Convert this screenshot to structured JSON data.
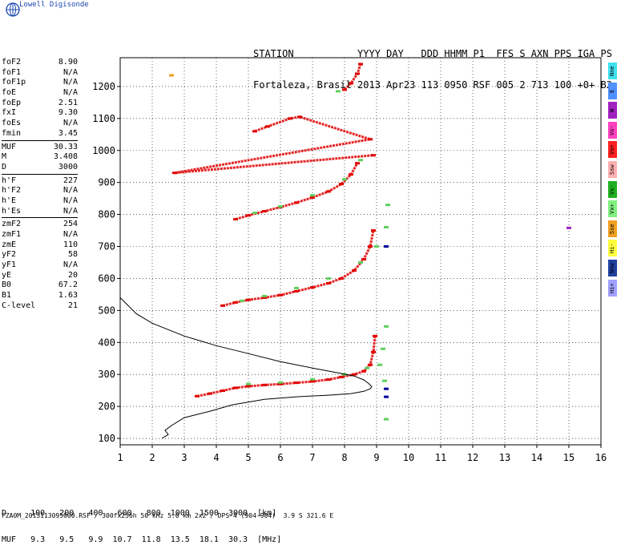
{
  "brand": "Lowell Digisonde",
  "header": {
    "line1": "STATION           YYYY DAY   DDD HHMM P1  FFS S AXN PPS IGA PS",
    "line2": "Fortaleza, Brasil 2013 Apr23 113 0950 RSF 005 2 713 100 +0+ B2"
  },
  "params": [
    {
      "k": "foF2",
      "v": "8.90"
    },
    {
      "k": "foF1",
      "v": "N/A"
    },
    {
      "k": "foF1p",
      "v": "N/A"
    },
    {
      "k": "foE",
      "v": "N/A"
    },
    {
      "k": "foEp",
      "v": "2.51"
    },
    {
      "k": "fxI",
      "v": "9.30"
    },
    {
      "k": "foEs",
      "v": "N/A"
    },
    {
      "k": "fmin",
      "v": "3.45"
    },
    {
      "sep": true
    },
    {
      "k": "MUF",
      "v": "30.33"
    },
    {
      "k": "M",
      "v": "3.408"
    },
    {
      "k": "D",
      "v": "3000"
    },
    {
      "sep": true
    },
    {
      "k": "h'F",
      "v": "227"
    },
    {
      "k": "h'F2",
      "v": "N/A"
    },
    {
      "k": "h'E",
      "v": "N/A"
    },
    {
      "k": "h'Es",
      "v": "N/A"
    },
    {
      "sep": true
    },
    {
      "k": "zmF2",
      "v": "254"
    },
    {
      "k": "zmF1",
      "v": "N/A"
    },
    {
      "k": "zmE",
      "v": "110"
    },
    {
      "k": "yF2",
      "v": "58"
    },
    {
      "k": "yF1",
      "v": "N/A"
    },
    {
      "k": "yE",
      "v": "20"
    },
    {
      "k": "B0",
      "v": "67.2"
    },
    {
      "k": "B1",
      "v": "1.63"
    },
    {
      "k": "C-level",
      "v": "21"
    }
  ],
  "legend": [
    {
      "label": "Nne",
      "color": "#40e0f0"
    },
    {
      "label": "E",
      "color": "#5090ff"
    },
    {
      "label": "W",
      "color": "#a020c0"
    },
    {
      "label": "Vo-",
      "color": "#ff40c0"
    },
    {
      "label": "Vo+",
      "color": "#ff2020"
    },
    {
      "label": "Ssw",
      "color": "#ffb0b0"
    },
    {
      "label": "Vx-",
      "color": "#20b020"
    },
    {
      "label": "Vx+",
      "color": "#80f080"
    },
    {
      "label": "Sse",
      "color": "#f0a020"
    },
    {
      "label": "Hi-",
      "color": "#ffff40"
    },
    {
      "label": "Nnw",
      "color": "#2040a0"
    },
    {
      "label": "Hi+",
      "color": "#a0a0ff"
    }
  ],
  "muf_table": {
    "row1": "D     100   200   400   600   800  1000  1500  3000  [km]",
    "row2": "MUF   9.3   9.5   9.9  10.7  11.8  13.5  18.1  30.3  [MHz]"
  },
  "footer": "FZA0M_2013113095000.RSF / 300fx256h 50 kHz 5.0 km 2x2 / DPS-4 (904-904)  3.9 S 321.6 E",
  "chart_data": {
    "type": "scatter",
    "title": "",
    "xlabel": "",
    "ylabel": "",
    "xlim": [
      1,
      16
    ],
    "ylim": [
      80,
      1290
    ],
    "xticks": [
      "1",
      "2",
      "3",
      "4",
      "5",
      "6",
      "7",
      "8",
      "9",
      "10",
      "11",
      "12",
      "13",
      "14",
      "15",
      "16"
    ],
    "yticks": [
      "100",
      "200",
      "300",
      "400",
      "500",
      "600",
      "700",
      "800",
      "900",
      "1000",
      "1100",
      "1200"
    ],
    "grid": true,
    "series": [
      {
        "color": "#e00000",
        "points": [
          [
            3.4,
            232
          ],
          [
            3.8,
            240
          ],
          [
            4.2,
            249
          ],
          [
            4.6,
            258
          ],
          [
            5.0,
            263
          ],
          [
            5.5,
            267
          ],
          [
            6.0,
            270
          ],
          [
            6.5,
            274
          ],
          [
            7.0,
            278
          ],
          [
            7.5,
            284
          ],
          [
            7.9,
            292
          ],
          [
            8.3,
            300
          ],
          [
            8.6,
            310
          ],
          [
            8.8,
            330
          ],
          [
            8.9,
            370
          ],
          [
            8.95,
            420
          ]
        ]
      },
      {
        "color": "#e00000",
        "points": [
          [
            4.2,
            515
          ],
          [
            4.6,
            525
          ],
          [
            5.0,
            533
          ],
          [
            5.5,
            540
          ],
          [
            6.0,
            548
          ],
          [
            6.5,
            560
          ],
          [
            7.0,
            572
          ],
          [
            7.5,
            585
          ],
          [
            7.9,
            600
          ],
          [
            8.3,
            625
          ],
          [
            8.6,
            660
          ],
          [
            8.8,
            700
          ],
          [
            8.9,
            750
          ]
        ]
      },
      {
        "color": "#e00000",
        "points": [
          [
            4.6,
            785
          ],
          [
            5.0,
            797
          ],
          [
            5.5,
            810
          ],
          [
            6.0,
            823
          ],
          [
            6.5,
            837
          ],
          [
            7.0,
            853
          ],
          [
            7.5,
            872
          ],
          [
            7.9,
            895
          ],
          [
            8.2,
            925
          ],
          [
            8.4,
            960
          ]
        ]
      },
      {
        "color": "#e00000",
        "points": [
          [
            8.0,
            1190
          ],
          [
            8.2,
            1210
          ],
          [
            8.4,
            1240
          ],
          [
            8.5,
            1270
          ]
        ]
      },
      {
        "color": "#e00000",
        "points": [
          [
            5.2,
            1060
          ],
          [
            5.6,
            1075
          ],
          [
            6.3,
            1100
          ],
          [
            6.6,
            1105
          ],
          [
            8.8,
            1035
          ],
          [
            2.7,
            930
          ],
          [
            8.9,
            985
          ]
        ]
      },
      {
        "color": "#60d060",
        "points": [
          [
            5.0,
            270
          ],
          [
            6.0,
            275
          ],
          [
            7.0,
            285
          ],
          [
            8.0,
            300
          ],
          [
            8.7,
            320
          ],
          [
            9.1,
            330
          ],
          [
            9.2,
            380
          ],
          [
            9.3,
            450
          ],
          [
            9.25,
            280
          ],
          [
            9.3,
            160
          ],
          [
            4.8,
            530
          ],
          [
            5.5,
            545
          ],
          [
            6.5,
            570
          ],
          [
            7.5,
            600
          ],
          [
            8.5,
            650
          ],
          [
            9.0,
            700
          ],
          [
            9.3,
            760
          ],
          [
            9.35,
            830
          ],
          [
            5.2,
            805
          ],
          [
            6.0,
            825
          ],
          [
            7.0,
            860
          ],
          [
            8.0,
            910
          ],
          [
            8.5,
            970
          ],
          [
            7.8,
            1185
          ]
        ]
      },
      {
        "color": "#0000a0",
        "points": [
          [
            9.3,
            700
          ],
          [
            9.3,
            255
          ],
          [
            9.3,
            230
          ]
        ]
      },
      {
        "color": "#f0a020",
        "points": [
          [
            2.6,
            1235
          ]
        ]
      },
      {
        "color": "#a020c0",
        "points": [
          [
            15.0,
            758
          ]
        ]
      }
    ],
    "profile": {
      "curve": [
        [
          1,
          540
        ],
        [
          1.5,
          490
        ],
        [
          2,
          460
        ],
        [
          3,
          420
        ],
        [
          4,
          390
        ],
        [
          5,
          365
        ],
        [
          6,
          340
        ],
        [
          7,
          320
        ],
        [
          7.8,
          305
        ],
        [
          8.3,
          295
        ],
        [
          8.6,
          283
        ],
        [
          8.75,
          272
        ],
        [
          8.85,
          262
        ],
        [
          8.8,
          255
        ],
        [
          8.6,
          247
        ],
        [
          8.2,
          240
        ],
        [
          7.5,
          235
        ],
        [
          6.5,
          230
        ],
        [
          5.5,
          222
        ],
        [
          4.5,
          205
        ],
        [
          3.8,
          185
        ],
        [
          3.0,
          165
        ],
        [
          2.6,
          140
        ],
        [
          2.4,
          125
        ],
        [
          2.5,
          112
        ],
        [
          2.3,
          100
        ]
      ]
    }
  }
}
